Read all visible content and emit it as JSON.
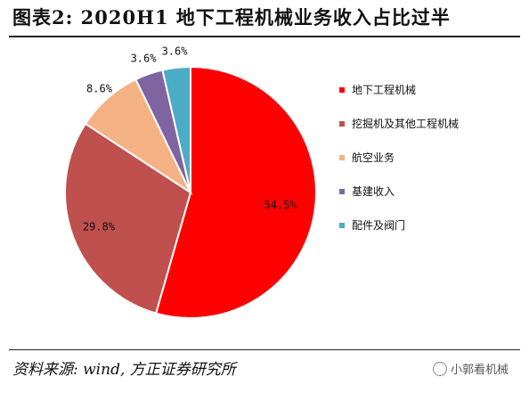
{
  "header": {
    "title": "图表2:  2020H1 地下工程机械业务收入占比过半"
  },
  "footer": {
    "source": "资料来源: wind, 方正证券研究所",
    "watermark": "小郭看机械"
  },
  "chart_data": {
    "type": "pie",
    "title": "图表2:  2020H1 地下工程机械业务收入占比过半",
    "legend_position": "right",
    "categories": [
      "地下工程机械",
      "挖掘机及其他工程机械",
      "航空业务",
      "基建收入",
      "配件及阀门"
    ],
    "values": [
      54.5,
      29.8,
      8.6,
      3.6,
      3.6
    ],
    "labels": [
      "54.5%",
      "29.8%",
      "8.6%",
      "3.6%",
      "3.6%"
    ],
    "colors": [
      "#ff0000",
      "#c0504d",
      "#f4b183",
      "#8064a2",
      "#4bacc6"
    ]
  }
}
